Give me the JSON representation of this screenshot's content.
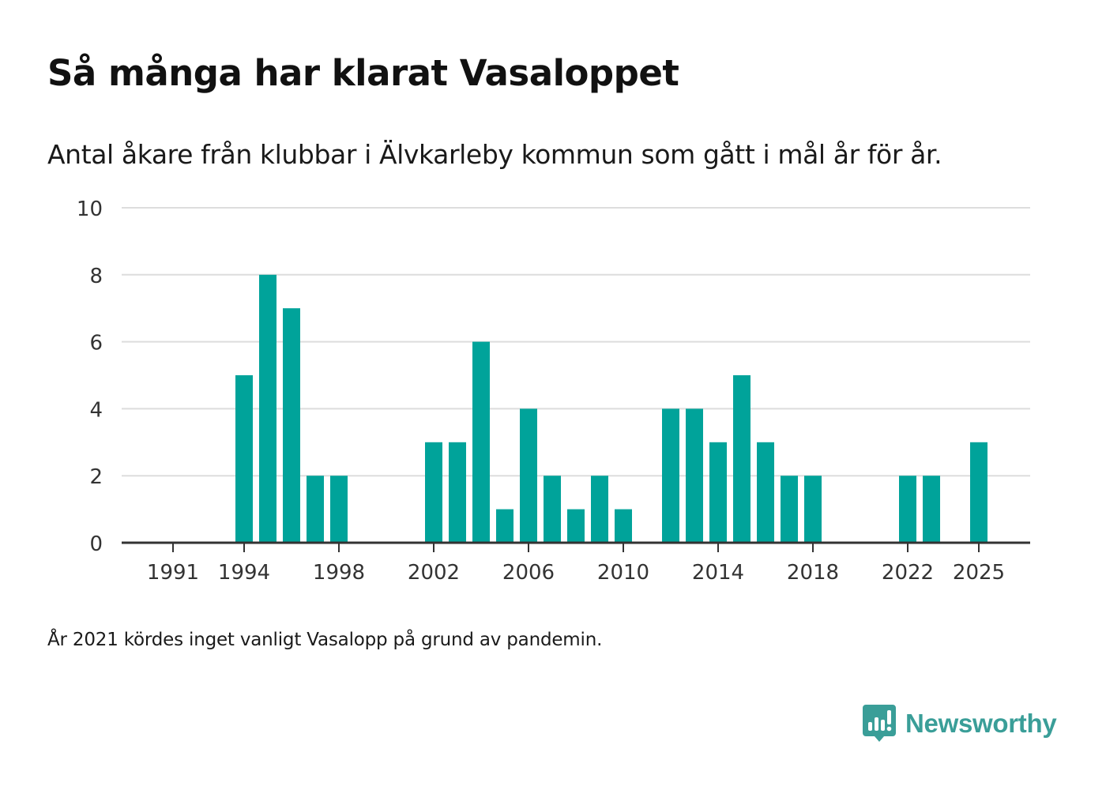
{
  "title": "Så många har klarat Vasaloppet",
  "subtitle": "Antal åkare från klubbar i Älvkarleby kommun som gått i mål år för år.",
  "footnote": "År 2021 kördes inget vanligt Vasalopp på grund av pandemin.",
  "brand": {
    "name": "Newsworthy",
    "logo_icon": "newsworthy-logo-icon"
  },
  "colors": {
    "bar": "#00a39a",
    "grid": "#dddddd",
    "axis": "#333333",
    "brand": "#3a9e98"
  },
  "chart_data": {
    "type": "bar",
    "title": "Så många har klarat Vasaloppet",
    "subtitle": "Antal åkare från klubbar i Älvkarleby kommun som gått i mål år för år.",
    "xlabel": "",
    "ylabel": "",
    "ylim": [
      0,
      10
    ],
    "yticks": [
      0,
      2,
      4,
      6,
      8,
      10
    ],
    "xticks": [
      1991,
      1994,
      1998,
      2002,
      2006,
      2010,
      2014,
      2018,
      2022,
      2025
    ],
    "grid": true,
    "categories": [
      1991,
      1992,
      1993,
      1994,
      1995,
      1996,
      1997,
      1998,
      1999,
      2000,
      2001,
      2002,
      2003,
      2004,
      2005,
      2006,
      2007,
      2008,
      2009,
      2010,
      2011,
      2012,
      2013,
      2014,
      2015,
      2016,
      2017,
      2018,
      2019,
      2020,
      2021,
      2022,
      2023,
      2024,
      2025
    ],
    "values": [
      0,
      0,
      0,
      5,
      8,
      7,
      2,
      2,
      0,
      0,
      0,
      3,
      3,
      6,
      1,
      4,
      2,
      1,
      2,
      1,
      0,
      4,
      4,
      3,
      5,
      3,
      2,
      2,
      0,
      0,
      0,
      2,
      2,
      0,
      3
    ]
  }
}
